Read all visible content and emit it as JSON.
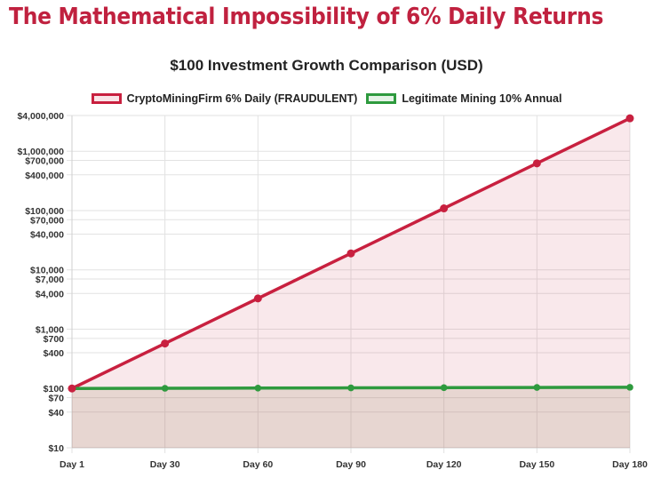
{
  "page": {
    "title": "The Mathematical Impossibility of 6% Daily Returns"
  },
  "colors": {
    "title": "#c0213f",
    "fraud_line": "#c8203f",
    "fraud_fill": "rgba(200,32,63,0.10)",
    "legit_line": "#2e9a3e",
    "legit_fill": "rgba(170,150,120,0.22)",
    "grid": "#e2e2e2"
  },
  "legend": {
    "items": [
      {
        "label": "CryptoMiningFirm 6% Daily (FRAUDULENT)",
        "color": "#c8203f",
        "fill": "#f9e4e8"
      },
      {
        "label": "Legitimate Mining 10% Annual",
        "color": "#2e9a3e",
        "fill": "#e4f3e6"
      }
    ]
  },
  "chart_data": {
    "type": "line",
    "title": "$100 Investment Growth Comparison (USD)",
    "xlabel": "",
    "ylabel": "",
    "yscale": "log",
    "ylim": [
      10,
      4000000
    ],
    "categories": [
      "Day 1",
      "Day 30",
      "Day 60",
      "Day 90",
      "Day 120",
      "Day 150",
      "Day 180"
    ],
    "y_ticks": [
      {
        "value": 4000000,
        "label": "$4,000,000"
      },
      {
        "value": 1000000,
        "label": "$1,000,000"
      },
      {
        "value": 700000,
        "label": "$700,000"
      },
      {
        "value": 400000,
        "label": "$400,000"
      },
      {
        "value": 100000,
        "label": "$100,000"
      },
      {
        "value": 70000,
        "label": "$70,000"
      },
      {
        "value": 40000,
        "label": "$40,000"
      },
      {
        "value": 10000,
        "label": "$10,000"
      },
      {
        "value": 7000,
        "label": "$7,000"
      },
      {
        "value": 4000,
        "label": "$4,000"
      },
      {
        "value": 1000,
        "label": "$1,000"
      },
      {
        "value": 700,
        "label": "$700"
      },
      {
        "value": 400,
        "label": "$400"
      },
      {
        "value": 100,
        "label": "$100"
      },
      {
        "value": 70,
        "label": "$70"
      },
      {
        "value": 40,
        "label": "$40"
      },
      {
        "value": 10,
        "label": "$10"
      }
    ],
    "series": [
      {
        "name": "CryptoMiningFirm 6% Daily (FRAUDULENT)",
        "values": [
          100,
          574,
          3299,
          18945,
          108810,
          624890,
          3588800
        ],
        "fill": true
      },
      {
        "name": "Legitimate Mining 10% Annual",
        "values": [
          100,
          100.8,
          101.6,
          102.4,
          103.2,
          104.0,
          104.8
        ],
        "fill": true
      }
    ],
    "grid": true,
    "legend_position": "top"
  }
}
